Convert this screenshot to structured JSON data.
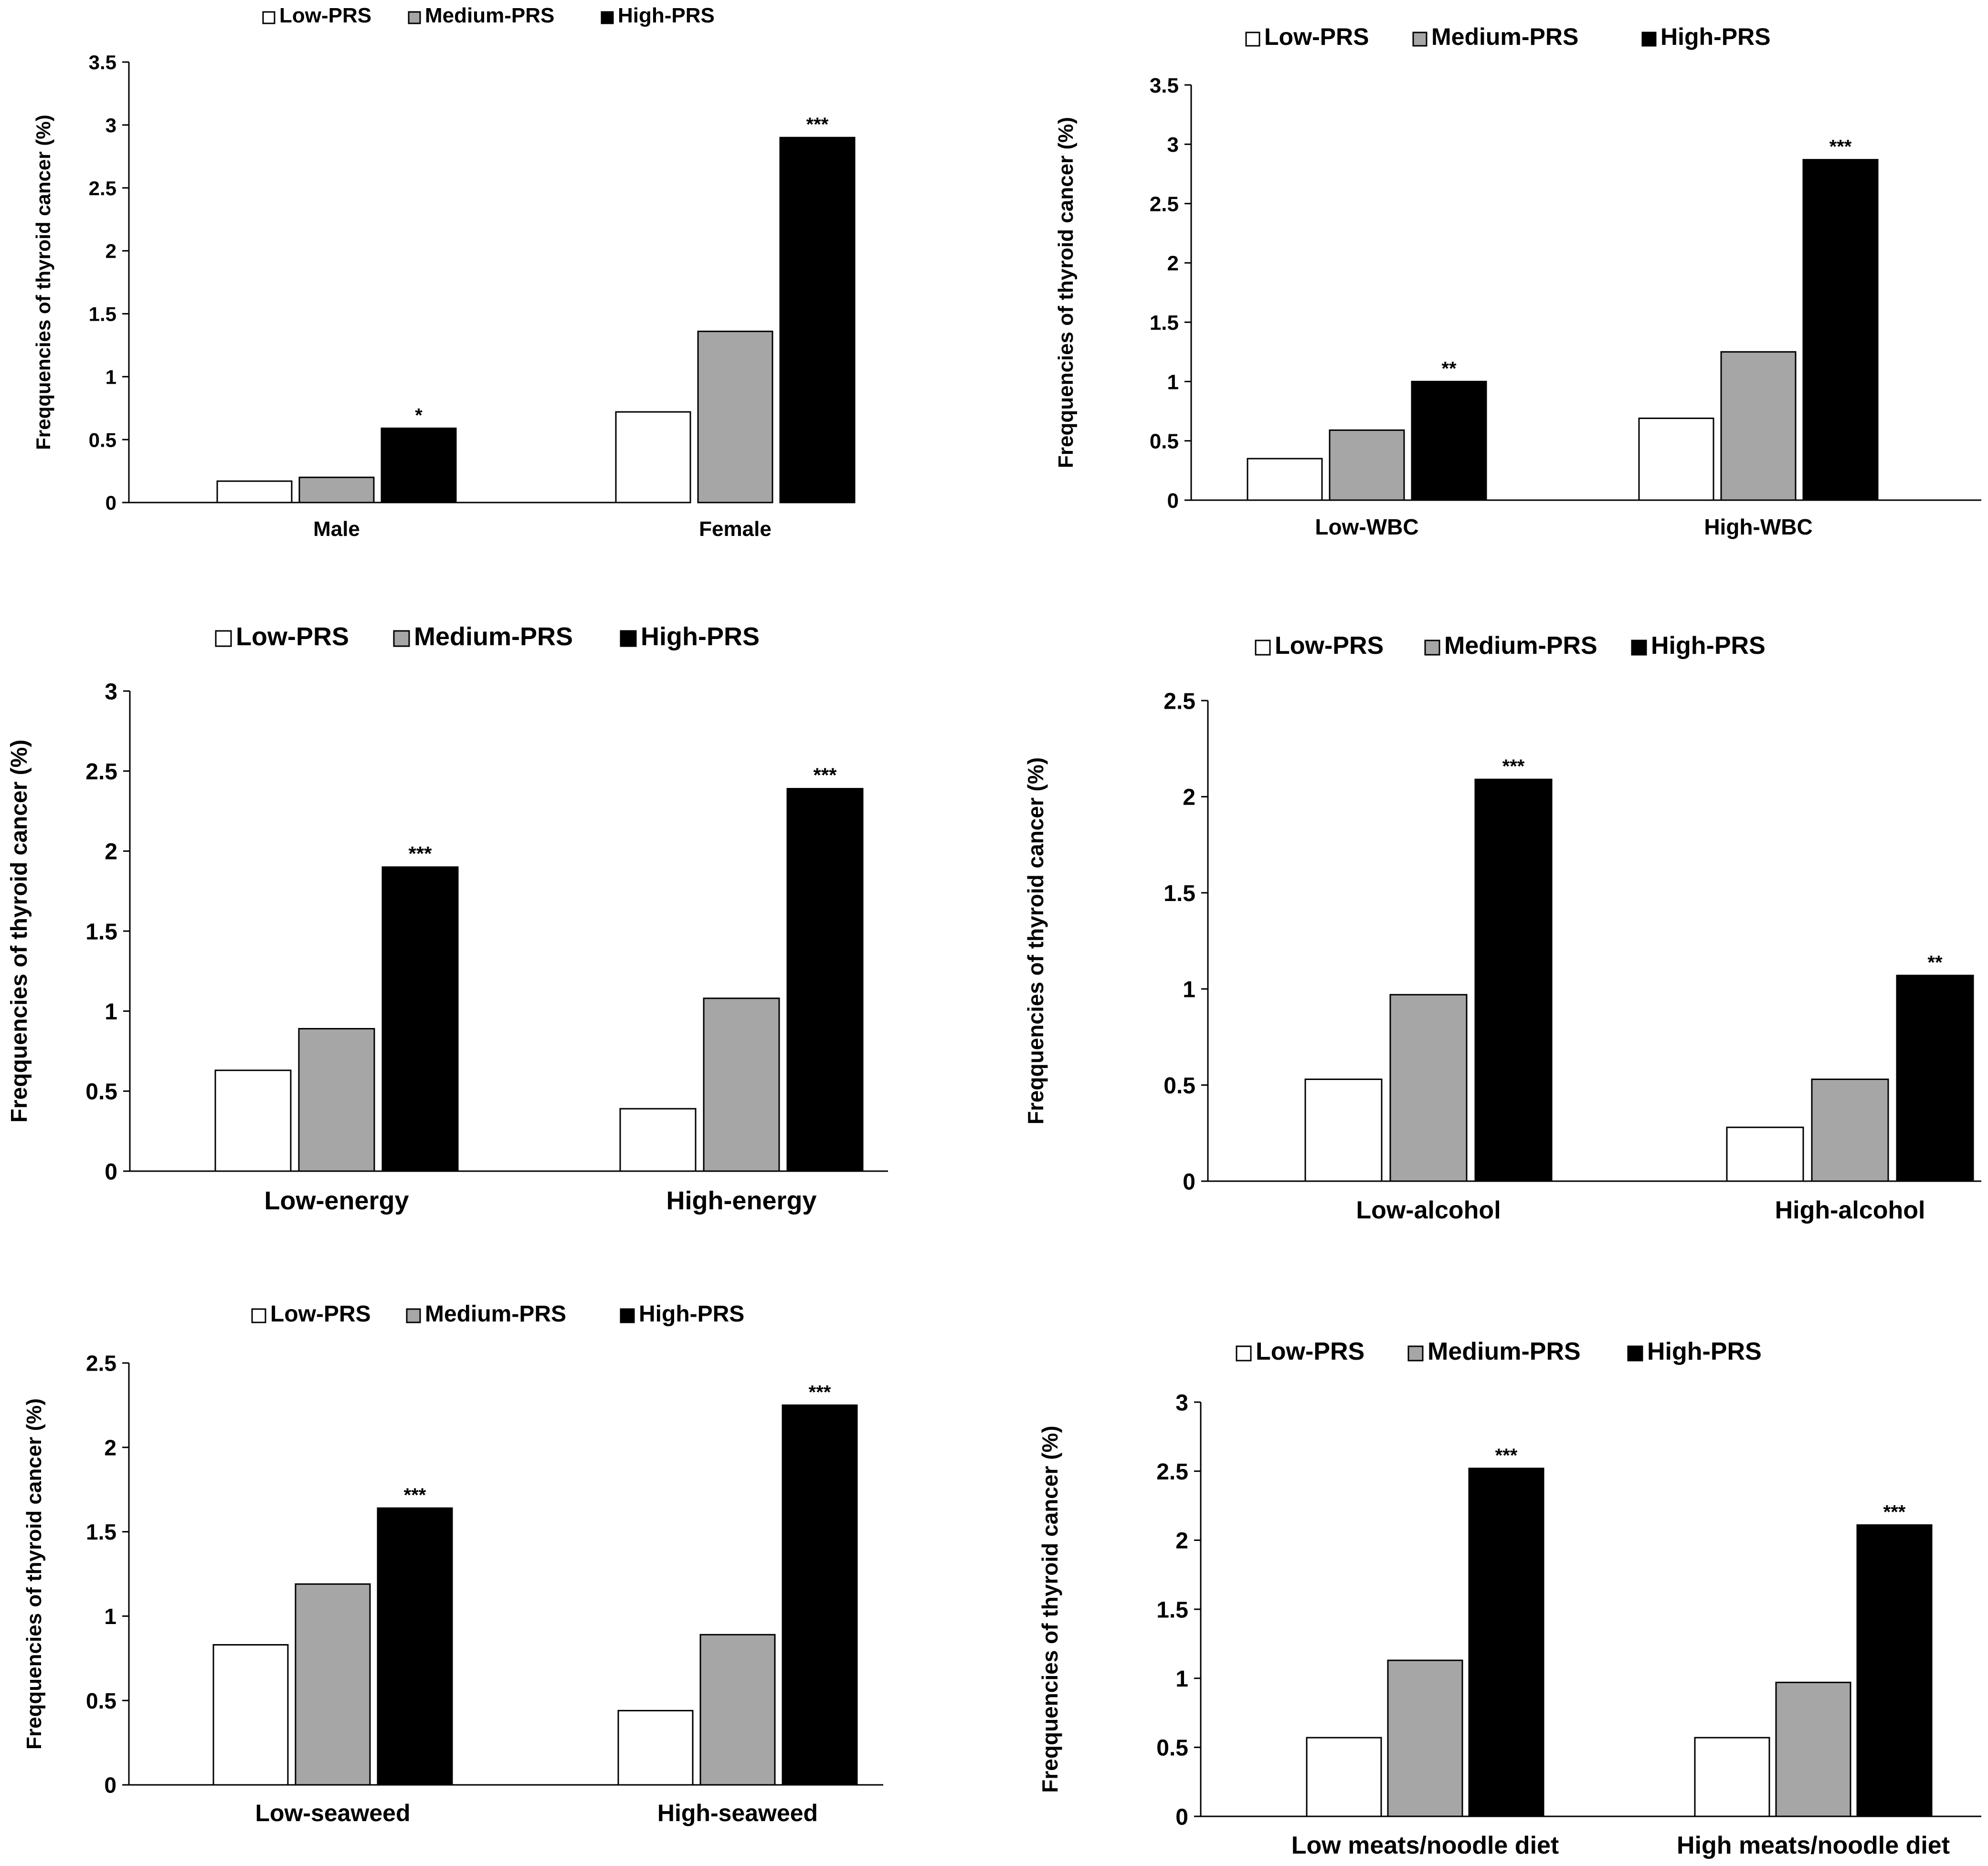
{
  "legend": [
    "Low-PRS",
    "Medium-PRS",
    "High-PRS"
  ],
  "series_colors": [
    "#ffffff",
    "#a6a6a6",
    "#000000"
  ],
  "chart_data": [
    {
      "type": "bar",
      "categories": [
        "Male",
        "Female"
      ],
      "series": [
        {
          "name": "Low-PRS",
          "values": [
            0.17,
            0.72
          ]
        },
        {
          "name": "Medium-PRS",
          "values": [
            0.2,
            1.36
          ]
        },
        {
          "name": "High-PRS",
          "values": [
            0.59,
            2.9
          ]
        }
      ],
      "significance": [
        "*",
        "***"
      ],
      "ylabel": "Freqquencies of thyroid cancer (%)",
      "ylim": [
        0,
        3.5
      ],
      "yticks": [
        "0",
        "0.5",
        "1",
        "1.5",
        "2",
        "2.5",
        "3",
        "3.5"
      ],
      "legend_position": "top"
    },
    {
      "type": "bar",
      "categories": [
        "Low-WBC",
        "High-WBC"
      ],
      "series": [
        {
          "name": "Low-PRS",
          "values": [
            0.35,
            0.69
          ]
        },
        {
          "name": "Medium-PRS",
          "values": [
            0.59,
            1.25
          ]
        },
        {
          "name": "High-PRS",
          "values": [
            1.0,
            2.87
          ]
        }
      ],
      "significance": [
        "**",
        "***"
      ],
      "ylabel": "Freqquencies of thyroid cancer (%)",
      "ylim": [
        0,
        3.5
      ],
      "yticks": [
        "0",
        "0.5",
        "1",
        "1.5",
        "2",
        "2.5",
        "3",
        "3.5"
      ],
      "legend_position": "top"
    },
    {
      "type": "bar",
      "categories": [
        "Low-energy",
        "High-energy"
      ],
      "series": [
        {
          "name": "Low-PRS",
          "values": [
            0.63,
            0.39
          ]
        },
        {
          "name": "Medium-PRS",
          "values": [
            0.89,
            1.08
          ]
        },
        {
          "name": "High-PRS",
          "values": [
            1.9,
            2.39
          ]
        }
      ],
      "significance": [
        "***",
        "***"
      ],
      "ylabel": "Freqquencies of thyroid cancer (%)",
      "ylim": [
        0,
        3
      ],
      "yticks": [
        "0",
        "0.5",
        "1",
        "1.5",
        "2",
        "2.5",
        "3"
      ],
      "legend_position": "top"
    },
    {
      "type": "bar",
      "categories": [
        "Low-alcohol",
        "High-alcohol"
      ],
      "series": [
        {
          "name": "Low-PRS",
          "values": [
            0.53,
            0.28
          ]
        },
        {
          "name": "Medium-PRS",
          "values": [
            0.97,
            0.53
          ]
        },
        {
          "name": "High-PRS",
          "values": [
            2.09,
            1.07
          ]
        }
      ],
      "significance": [
        "***",
        "**"
      ],
      "ylabel": "Freqquencies of thyroid cancer (%)",
      "ylim": [
        0,
        2.5
      ],
      "yticks": [
        "0",
        "0.5",
        "1",
        "1.5",
        "2",
        "2.5"
      ],
      "legend_position": "top"
    },
    {
      "type": "bar",
      "categories": [
        "Low-seaweed",
        "High-seaweed"
      ],
      "series": [
        {
          "name": "Low-PRS",
          "values": [
            0.83,
            0.44
          ]
        },
        {
          "name": "Medium-PRS",
          "values": [
            1.19,
            0.89
          ]
        },
        {
          "name": "High-PRS",
          "values": [
            1.64,
            2.25
          ]
        }
      ],
      "significance": [
        "***",
        "***"
      ],
      "ylabel": "Freqquencies of thyroid cancer (%)",
      "ylim": [
        0,
        2.5
      ],
      "yticks": [
        "0",
        "0.5",
        "1",
        "1.5",
        "2",
        "2.5"
      ],
      "legend_position": "top"
    },
    {
      "type": "bar",
      "categories": [
        "Low meats/noodle diet",
        "High meats/noodle diet"
      ],
      "series": [
        {
          "name": "Low-PRS",
          "values": [
            0.57,
            0.57
          ]
        },
        {
          "name": "Medium-PRS",
          "values": [
            1.13,
            0.97
          ]
        },
        {
          "name": "High-PRS",
          "values": [
            2.52,
            2.11
          ]
        }
      ],
      "significance": [
        "***",
        "***"
      ],
      "ylabel": "Freqquencies of thyroid cancer (%)",
      "ylim": [
        0,
        3
      ],
      "yticks": [
        "0",
        "0.5",
        "1",
        "1.5",
        "2",
        "2.5",
        "3"
      ],
      "legend_position": "top"
    }
  ]
}
